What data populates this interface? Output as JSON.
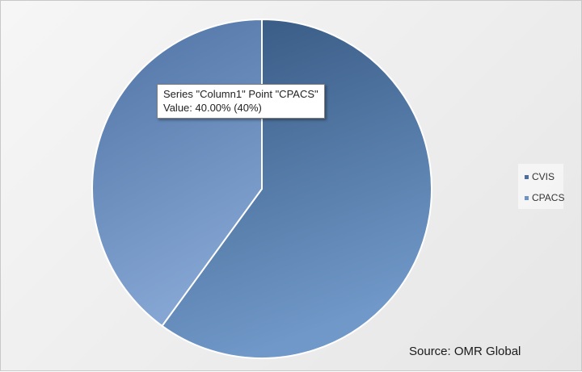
{
  "chart_data": {
    "type": "pie",
    "categories": [
      "CVIS",
      "CPACS"
    ],
    "values": [
      60,
      40
    ],
    "colors": [
      "#4a6f9f",
      "#6f93c3"
    ],
    "series": [
      {
        "name": "Column1",
        "values": [
          60,
          40
        ]
      }
    ],
    "title": "",
    "legend": {
      "placement": "right",
      "entries": [
        "CVIS",
        "CPACS"
      ]
    },
    "tooltip": {
      "line1": "Series \"Column1\" Point \"CPACS\"",
      "line2": "Value: 40.00% (40%)"
    },
    "source": "Source: OMR Global"
  }
}
